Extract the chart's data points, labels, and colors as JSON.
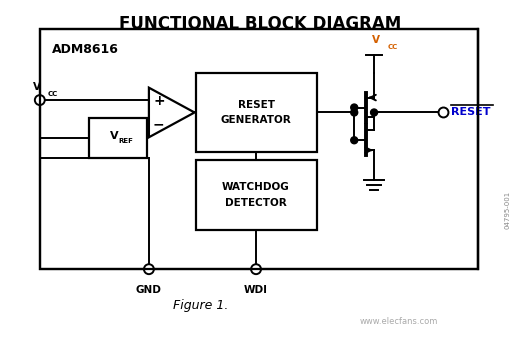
{
  "title": "FUNCTIONAL BLOCK DIAGRAM",
  "chip_name": "ADM8616",
  "figure_label": "Figure 1.",
  "watermark": "www.elecfans.com",
  "side_label": "04795-001",
  "bg_color": "#ffffff",
  "vcc_color": "#d46000",
  "reset_color": "#0000cc",
  "title_fontsize": 12,
  "chip_fontsize": 9,
  "block_fontsize": 7.5,
  "annotation_fontsize": 7
}
